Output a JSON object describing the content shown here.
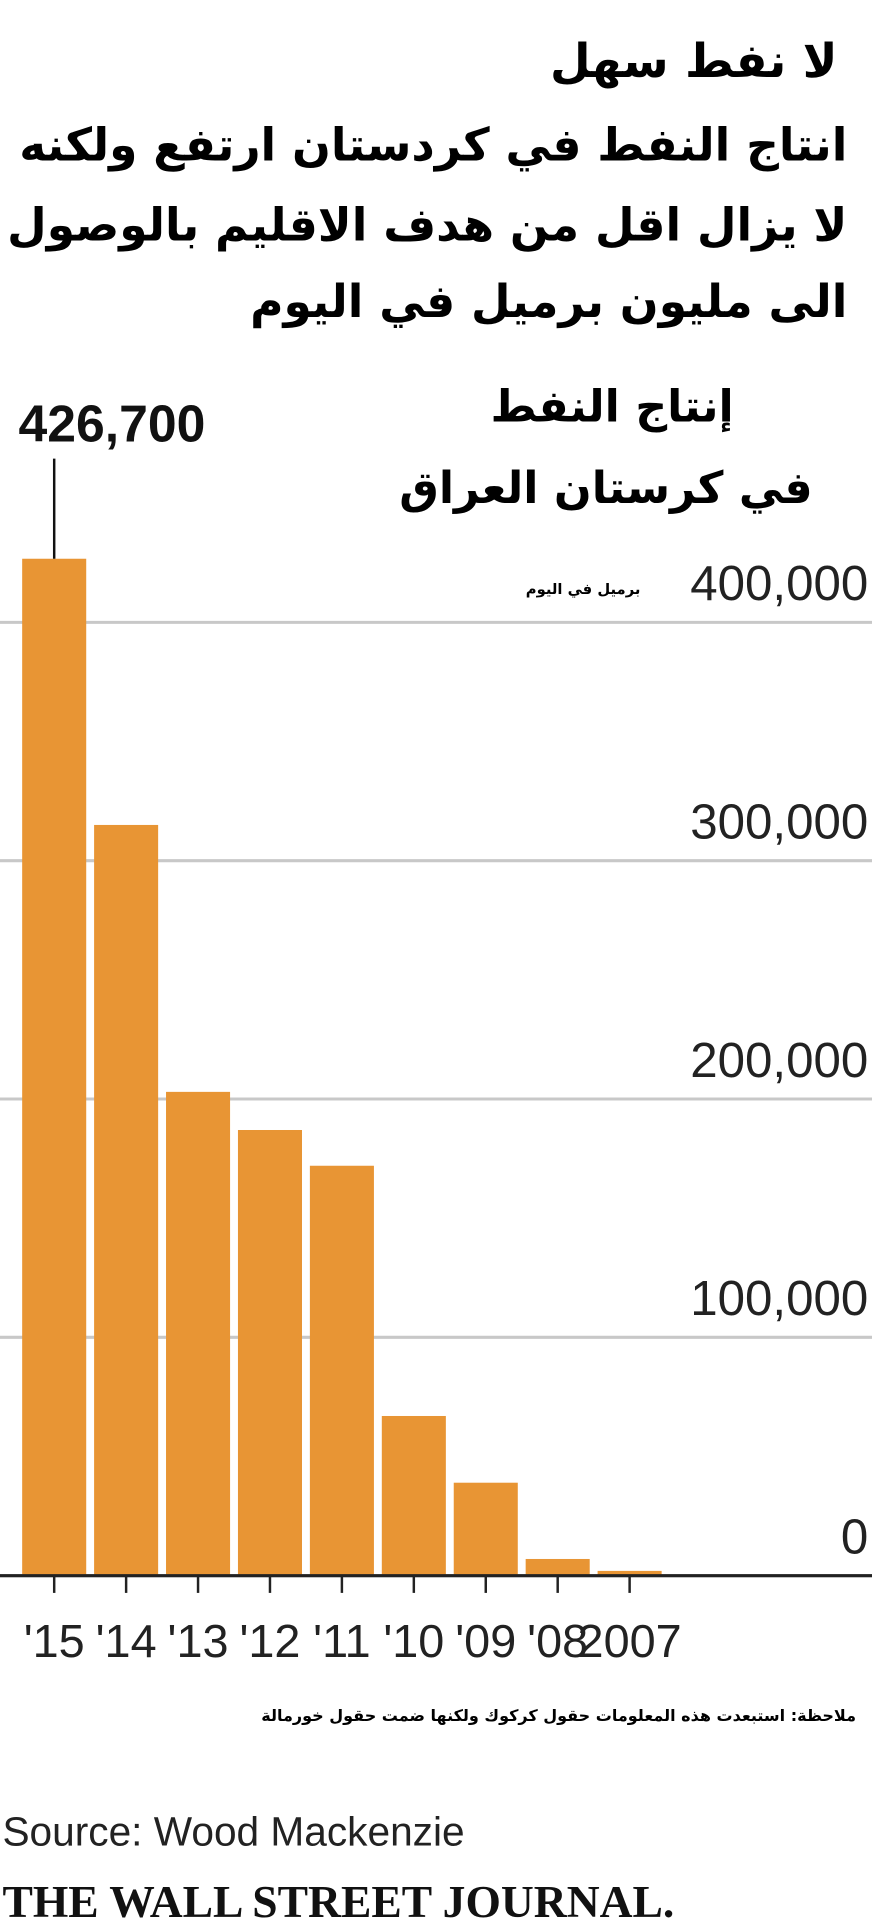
{
  "chart_data": {
    "type": "bar",
    "title": "لا نفط سهل",
    "subtitle": [
      "انتاج النفط في كردستان ارتفع ولكنه",
      "لا يزال اقل من هدف الاقليم بالوصول",
      "الى مليون برميل في اليوم"
    ],
    "chart_label": [
      "إنتاج النفط",
      "في كرستان العراق"
    ],
    "unit": "برميل في اليوم",
    "categories": [
      "'15",
      "'14",
      "'13",
      "'12",
      "'11",
      "'10",
      "'09",
      "'08",
      "2007"
    ],
    "values": [
      426700,
      315000,
      203000,
      187000,
      172000,
      67000,
      39000,
      7000,
      2000
    ],
    "value_labels": [
      "426,700",
      null,
      null,
      null,
      null,
      null,
      null,
      null,
      null
    ],
    "color": "#e89534",
    "ylim": [
      0,
      400000
    ],
    "yticks": [
      0,
      {
        "value": 100000,
        "label": "100,000"
      },
      {
        "value": 200000,
        "label": "200,000"
      },
      {
        "value": 300000,
        "label": "300,000"
      },
      {
        "value": 400000,
        "label": "400,000"
      }
    ],
    "grid": true,
    "note": "ملاحظة: استبعدت هذه المعلومات حقول كركوك ولكنها ضمت حقول خورمالة",
    "source": "Source: Wood Mackenzie",
    "publisher": "THE WALL STREET JOURNAL."
  }
}
